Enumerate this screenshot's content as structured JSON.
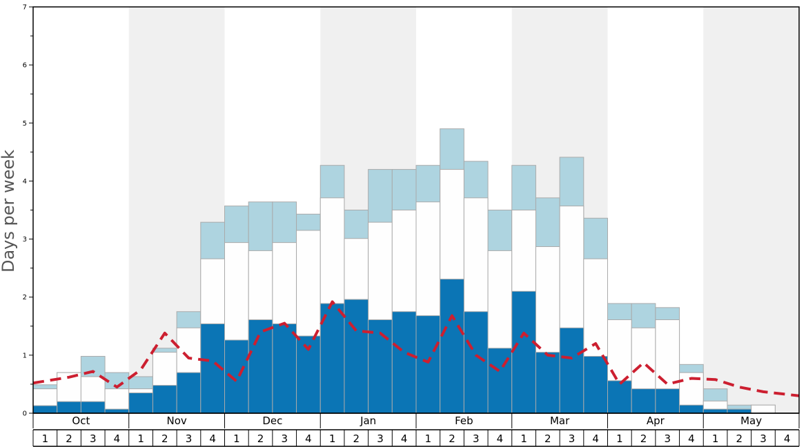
{
  "chart_data": {
    "type": "bar",
    "title": "",
    "ylabel": "Days per week",
    "xlabel": "",
    "ylim": [
      0,
      7
    ],
    "yticks": [
      0,
      1,
      2,
      3,
      4,
      5,
      6,
      7
    ],
    "months": [
      "Oct",
      "Nov",
      "Dec",
      "Jan",
      "Feb",
      "Mar",
      "Apr",
      "May"
    ],
    "weeks": [
      "1",
      "2",
      "3",
      "4"
    ],
    "shaded_months": [
      "Nov",
      "Jan",
      "Mar",
      "May"
    ],
    "colors": {
      "bottom": "#0b75b5",
      "middle": "#fefefe",
      "top": "#aed4e0",
      "line": "#cc1f30",
      "shade": "#f0f0f0",
      "bar_border": "#aaaaaa"
    },
    "series": [
      {
        "values": [
          0.13,
          0.2,
          0.2,
          0.07,
          0.35,
          0.48,
          0.7,
          1.54,
          1.26,
          1.61,
          1.54,
          1.33,
          1.89,
          1.96,
          1.61,
          1.75,
          1.68,
          2.31,
          1.75,
          1.12,
          2.1,
          1.05,
          1.47,
          0.98,
          0.56,
          0.42,
          0.42,
          0.14,
          0.07,
          0.07,
          0,
          0
        ]
      },
      {
        "values": [
          0.42,
          0.7,
          0.63,
          0.42,
          0.42,
          1.05,
          1.47,
          2.66,
          2.94,
          2.8,
          2.94,
          3.15,
          3.71,
          3.01,
          3.29,
          3.5,
          3.64,
          4.2,
          3.71,
          2.8,
          3.5,
          2.87,
          3.57,
          2.66,
          1.61,
          1.47,
          1.61,
          0.7,
          0.21,
          0.07,
          0.14,
          0
        ]
      },
      {
        "values": [
          0.49,
          0.7,
          0.98,
          0.7,
          0.63,
          1.12,
          1.75,
          3.29,
          3.57,
          3.64,
          3.64,
          3.43,
          4.27,
          3.5,
          4.2,
          4.2,
          4.27,
          4.9,
          4.34,
          3.5,
          4.27,
          3.71,
          4.41,
          3.36,
          1.89,
          1.89,
          1.82,
          0.84,
          0.42,
          0.14,
          0.14,
          0
        ]
      }
    ],
    "line": {
      "style": "dashed",
      "values": [
        0.52,
        0.62,
        0.72,
        0.45,
        0.75,
        1.38,
        0.95,
        0.9,
        0.55,
        1.4,
        1.55,
        1.1,
        1.92,
        1.42,
        1.38,
        1.05,
        0.88,
        1.68,
        1.0,
        0.72,
        1.38,
        1.0,
        0.95,
        1.2,
        0.5,
        0.87,
        0.5,
        0.6,
        0.58,
        0.45,
        0.37,
        0.3
      ]
    }
  }
}
